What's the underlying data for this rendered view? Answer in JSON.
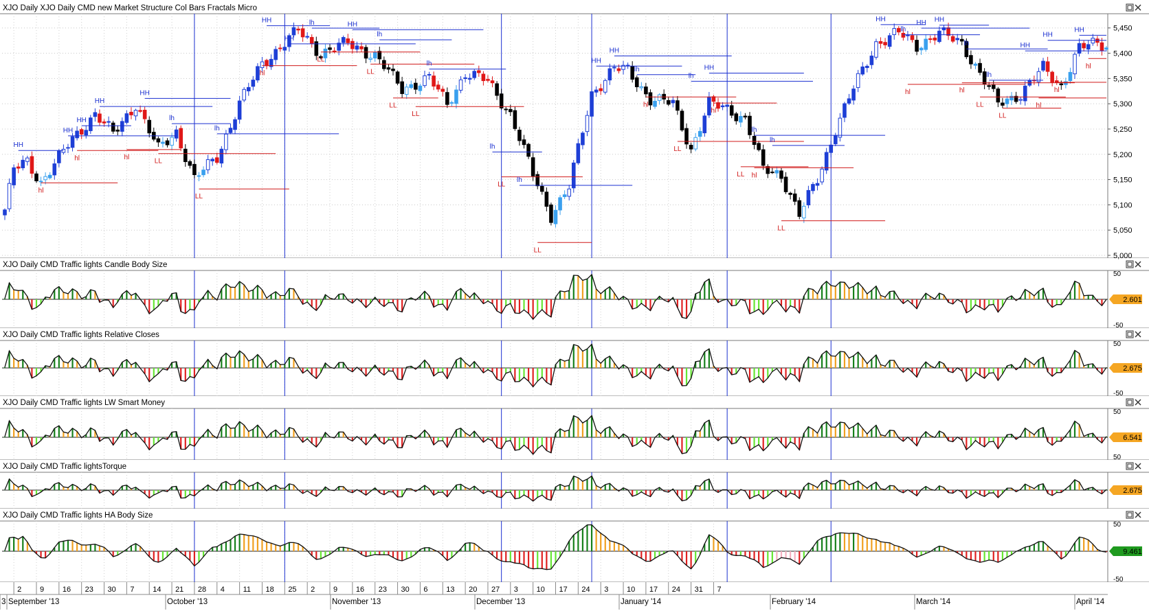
{
  "chart_data": [
    {
      "type": "candlestick",
      "title": "XJO  Daily     XJO  Daily   CMD new Market Structure Col Bars Fractals Micro",
      "ylim": [
        5000,
        5470
      ],
      "y_ticks": [
        "5,450",
        "5,400",
        "5,350",
        "5,300",
        "5,250",
        "5,200",
        "5,150",
        "5,100",
        "5,050",
        "5,000"
      ],
      "y_tick_values": [
        5450,
        5400,
        5350,
        5300,
        5250,
        5200,
        5150,
        5100,
        5050,
        5000
      ],
      "swing_labels": [
        {
          "text": "HH",
          "i": 3,
          "v": 5213
        },
        {
          "text": "hl",
          "i": 8,
          "v": 5138
        },
        {
          "text": "HH",
          "i": 14,
          "v": 5242
        },
        {
          "text": "HH",
          "i": 17,
          "v": 5262
        },
        {
          "text": "hl",
          "i": 16,
          "v": 5202
        },
        {
          "text": "HH",
          "i": 21,
          "v": 5300
        },
        {
          "text": "hl",
          "i": 27,
          "v": 5204
        },
        {
          "text": "HH",
          "i": 31,
          "v": 5316
        },
        {
          "text": "LL",
          "i": 34,
          "v": 5196
        },
        {
          "text": "lh",
          "i": 37,
          "v": 5266
        },
        {
          "text": "LL",
          "i": 43,
          "v": 5126
        },
        {
          "text": "lh",
          "i": 47,
          "v": 5246
        },
        {
          "text": "HH",
          "i": 58,
          "v": 5460
        },
        {
          "text": "hl",
          "i": 57,
          "v": 5370
        },
        {
          "text": "HH",
          "i": 63,
          "v": 5424
        },
        {
          "text": "lh",
          "i": 68,
          "v": 5455
        },
        {
          "text": "LL",
          "i": 70,
          "v": 5397
        },
        {
          "text": "HH",
          "i": 77,
          "v": 5452
        },
        {
          "text": "lh",
          "i": 83,
          "v": 5432
        },
        {
          "text": "LL",
          "i": 81,
          "v": 5373
        },
        {
          "text": "LL",
          "i": 86,
          "v": 5306
        },
        {
          "text": "lh",
          "i": 94,
          "v": 5374
        },
        {
          "text": "LL",
          "i": 91,
          "v": 5289
        },
        {
          "text": "lh",
          "i": 108,
          "v": 5210
        },
        {
          "text": "LL",
          "i": 110,
          "v": 5150
        },
        {
          "text": "lh",
          "i": 114,
          "v": 5144
        },
        {
          "text": "LL",
          "i": 118,
          "v": 5020
        },
        {
          "text": "HH",
          "i": 131,
          "v": 5380
        },
        {
          "text": "HH",
          "i": 135,
          "v": 5400
        },
        {
          "text": "lh",
          "i": 140,
          "v": 5363
        },
        {
          "text": "hl",
          "i": 142,
          "v": 5308
        },
        {
          "text": "lh",
          "i": 152,
          "v": 5350
        },
        {
          "text": "hl",
          "i": 157,
          "v": 5296
        },
        {
          "text": "HH",
          "i": 156,
          "v": 5366
        },
        {
          "text": "LL",
          "i": 149,
          "v": 5220
        },
        {
          "text": "LL",
          "i": 163,
          "v": 5170
        },
        {
          "text": "hl",
          "i": 166,
          "v": 5168
        },
        {
          "text": "lh",
          "i": 166,
          "v": 5243
        },
        {
          "text": "lh",
          "i": 170,
          "v": 5223
        },
        {
          "text": "LL",
          "i": 172,
          "v": 5063
        },
        {
          "text": "HH",
          "i": 194,
          "v": 5462
        },
        {
          "text": "lh",
          "i": 199,
          "v": 5442
        },
        {
          "text": "HH",
          "i": 203,
          "v": 5455
        },
        {
          "text": "HH",
          "i": 207,
          "v": 5461
        },
        {
          "text": "lh",
          "i": 213,
          "v": 5414
        },
        {
          "text": "hl",
          "i": 212,
          "v": 5336
        },
        {
          "text": "lh",
          "i": 218,
          "v": 5352
        },
        {
          "text": "LL",
          "i": 216,
          "v": 5308
        },
        {
          "text": "hl",
          "i": 200,
          "v": 5333
        },
        {
          "text": "LL",
          "i": 221,
          "v": 5286
        },
        {
          "text": "HH",
          "i": 226,
          "v": 5410
        },
        {
          "text": "hl",
          "i": 229,
          "v": 5306
        },
        {
          "text": "HH",
          "i": 231,
          "v": 5431
        },
        {
          "text": "hl",
          "i": 233,
          "v": 5337
        },
        {
          "text": "HH",
          "i": 238,
          "v": 5441
        },
        {
          "text": "hl",
          "i": 240,
          "v": 5384
        }
      ]
    },
    {
      "type": "bar",
      "title": "XJO  Daily   CMD Traffic lights Candle Body Size",
      "value_label": "2.601",
      "value_color": "#f5a623",
      "y_ticks": [
        "50",
        "-50"
      ]
    },
    {
      "type": "bar",
      "title": "XJO  Daily   CMD Traffic lights Relative Closes",
      "value_label": "2.675",
      "value_color": "#f5a623",
      "y_ticks": [
        "50",
        "-50"
      ]
    },
    {
      "type": "bar",
      "title": "XJO  Daily   CMD Traffic lights LW Smart Money",
      "value_label": "6.541",
      "value_color": "#f5a623",
      "y_ticks": [
        "50",
        "50"
      ]
    },
    {
      "type": "bar",
      "title": "XJO  Daily   CMD Traffic lightsTorque",
      "value_label": "2.675",
      "value_color": "#f5a623",
      "y_ticks": []
    },
    {
      "type": "bar",
      "title": "XJO  Daily   CMD Traffic lights HA Body Size",
      "value_label": "9.461",
      "value_color": "#1f9a1f",
      "y_ticks": [
        "50",
        "-50"
      ]
    }
  ],
  "x_axis": {
    "days": [
      "2",
      "9",
      "16",
      "23",
      "30",
      "7",
      "14",
      "21",
      "28",
      "4",
      "11",
      "18",
      "25",
      "2",
      "9",
      "16",
      "23",
      "30",
      "6",
      "13",
      "20",
      "27",
      "3",
      "10",
      "17",
      "24",
      "3",
      "10",
      "17",
      "24",
      "31",
      "7"
    ],
    "months": [
      "3",
      "September '13",
      "October '13",
      "November '13",
      "December '13",
      "January '14",
      "February '14",
      "March '14",
      "April '14"
    ]
  },
  "colors": {
    "bull_blue": "#1e3fd6",
    "light_blue": "#3aa0ee",
    "bear_red": "#e01818",
    "black": "#000000",
    "green": "#16801a",
    "lime": "#66e633",
    "orange": "#f0a020",
    "red": "#e02020",
    "pink": "#f5b0c0"
  }
}
